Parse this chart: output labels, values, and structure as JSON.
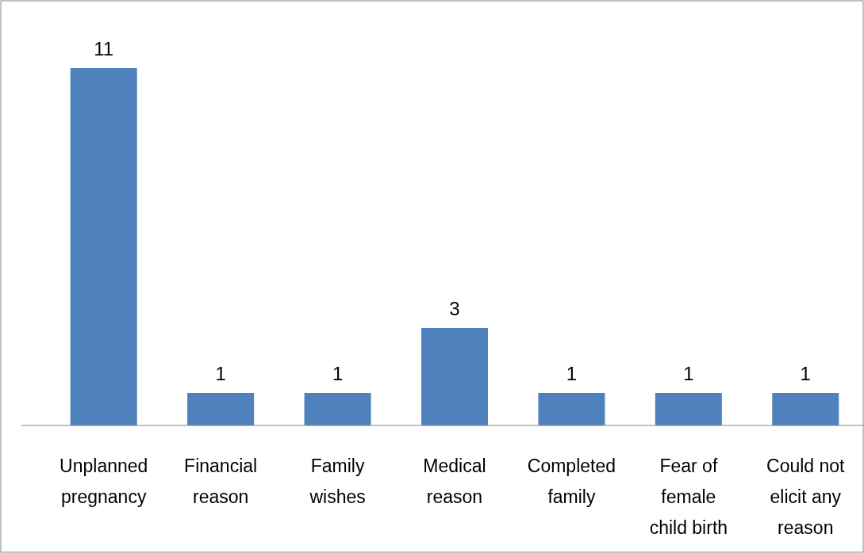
{
  "chart_data": {
    "type": "bar",
    "categories": [
      "Unplanned pregnancy",
      "Financial reason",
      "Family wishes",
      "Medical reason",
      "Completed family",
      "Fear of female child birth",
      "Could not elicit any reason"
    ],
    "values": [
      11,
      1,
      1,
      3,
      1,
      1,
      1
    ],
    "color": "#4f81bd",
    "data_labels": true
  }
}
